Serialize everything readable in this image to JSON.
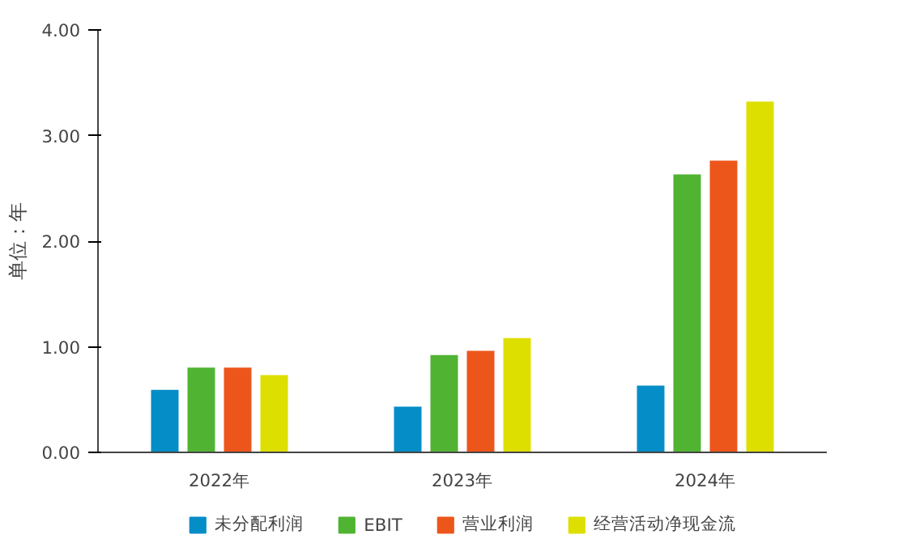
{
  "chart_data": {
    "type": "bar",
    "ylabel": "单位：年",
    "categories": [
      "2022年",
      "2023年",
      "2024年"
    ],
    "series": [
      {
        "name": "未分配利润",
        "color": "#058dc7",
        "values": [
          0.6,
          0.44,
          0.64
        ]
      },
      {
        "name": "EBIT",
        "color": "#50b432",
        "values": [
          0.81,
          0.93,
          2.64
        ]
      },
      {
        "name": "营业利润",
        "color": "#ed561b",
        "values": [
          0.81,
          0.97,
          2.77
        ]
      },
      {
        "name": "经营活动净现金流",
        "color": "#dddf00",
        "values": [
          0.74,
          1.09,
          3.33
        ]
      }
    ],
    "ylim": [
      0,
      4
    ],
    "yticks": [
      {
        "value": 0,
        "label": "0.00"
      },
      {
        "value": 1,
        "label": "1.00"
      },
      {
        "value": 2,
        "label": "2.00"
      },
      {
        "value": 3,
        "label": "3.00"
      },
      {
        "value": 4,
        "label": "4.00"
      }
    ],
    "grid": false,
    "legend": "bottom"
  }
}
